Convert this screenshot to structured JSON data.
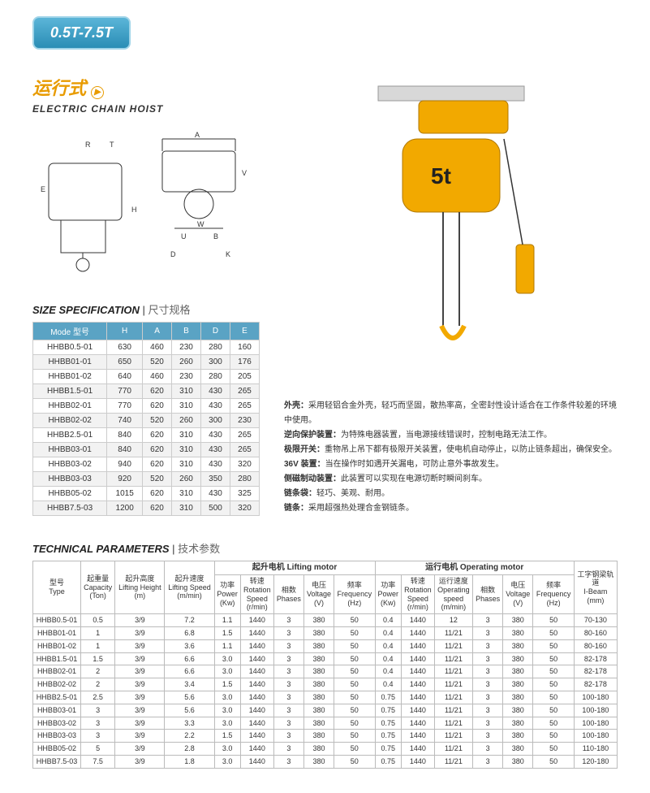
{
  "badge": "0.5T-7.5T",
  "title_cn": "运行式",
  "title_en": "ELECTRIC CHAIN HOIST",
  "size_head": {
    "en": "SIZE SPECIFICATION",
    "cn": "尺寸规格"
  },
  "size_cols": [
    "Mode 型号",
    "H",
    "A",
    "B",
    "D",
    "E"
  ],
  "size_rows": [
    [
      "HHBB0.5-01",
      "630",
      "460",
      "230",
      "280",
      "160"
    ],
    [
      "HHBB01-01",
      "650",
      "520",
      "260",
      "300",
      "176"
    ],
    [
      "HHBB01-02",
      "640",
      "460",
      "230",
      "280",
      "205"
    ],
    [
      "HHBB1.5-01",
      "770",
      "620",
      "310",
      "430",
      "265"
    ],
    [
      "HHBB02-01",
      "770",
      "620",
      "310",
      "430",
      "265"
    ],
    [
      "HHBB02-02",
      "740",
      "520",
      "260",
      "300",
      "230"
    ],
    [
      "HHBB2.5-01",
      "840",
      "620",
      "310",
      "430",
      "265"
    ],
    [
      "HHBB03-01",
      "840",
      "620",
      "310",
      "430",
      "265"
    ],
    [
      "HHBB03-02",
      "940",
      "620",
      "310",
      "430",
      "320"
    ],
    [
      "HHBB03-03",
      "920",
      "520",
      "260",
      "350",
      "280"
    ],
    [
      "HHBB05-02",
      "1015",
      "620",
      "310",
      "430",
      "325"
    ],
    [
      "HHBB7.5-03",
      "1200",
      "620",
      "310",
      "500",
      "320"
    ]
  ],
  "desc": [
    {
      "k": "外壳：",
      "v": "采用轻铝合金外壳，轻巧而坚固，散热率高，全密封性设计适合在工作条件较差的环境中使用。"
    },
    {
      "k": "逆向保护装置：",
      "v": "为特殊电器装置，当电源接线错误时，控制电路无法工作。"
    },
    {
      "k": "极限开关：",
      "v": "重物吊上吊下都有极限开关装置，使电机自动停止，以防止链条超出，确保安全。"
    },
    {
      "k": "36V 装置：",
      "v": "当在操作时如遇开关漏电，可防止意外事故发生。"
    },
    {
      "k": "侧磁制动装置：",
      "v": "此装置可以实现在电源切断时瞬间刹车。"
    },
    {
      "k": "链条袋：",
      "v": "轻巧、美观、耐用。"
    },
    {
      "k": "链条：",
      "v": "采用超强热处理合金钢链条。"
    }
  ],
  "tech_head": {
    "en": "TECHNICAL PARAMETERS",
    "cn": "技术参数"
  },
  "tech_group1": "起升电机 Lifting motor",
  "tech_group2": "运行电机 Operating motor",
  "tech_cols": [
    "型号\nType",
    "起重量\nCapacity\n(Ton)",
    "起升高度\nLifting Height\n(m)",
    "起升速度\nLifting Speed\n(m/min)",
    "功率\nPower\n(Kw)",
    "转速\nRotation\nSpeed\n(r/min)",
    "相数\nPhases",
    "电压\nVoltage\n(V)",
    "频率\nFrequency\n(Hz)",
    "功率\nPower\n(Kw)",
    "转速\nRotation\nSpeed\n(r/min)",
    "运行速度\nOperating\nspeed\n(m/min)",
    "相数\nPhases",
    "电压\nVoltage\n(V)",
    "频率\nFrequency\n(Hz)",
    "工字钢梁轨\n道\nI-Beam\n(mm)"
  ],
  "tech_rows": [
    [
      "HHBB0.5-01",
      "0.5",
      "3/9",
      "7.2",
      "1.1",
      "1440",
      "3",
      "380",
      "50",
      "0.4",
      "1440",
      "12",
      "3",
      "380",
      "50",
      "70-130"
    ],
    [
      "HHBB01-01",
      "1",
      "3/9",
      "6.8",
      "1.5",
      "1440",
      "3",
      "380",
      "50",
      "0.4",
      "1440",
      "11/21",
      "3",
      "380",
      "50",
      "80-160"
    ],
    [
      "HHBB01-02",
      "1",
      "3/9",
      "3.6",
      "1.1",
      "1440",
      "3",
      "380",
      "50",
      "0.4",
      "1440",
      "11/21",
      "3",
      "380",
      "50",
      "80-160"
    ],
    [
      "HHBB1.5-01",
      "1.5",
      "3/9",
      "6.6",
      "3.0",
      "1440",
      "3",
      "380",
      "50",
      "0.4",
      "1440",
      "11/21",
      "3",
      "380",
      "50",
      "82-178"
    ],
    [
      "HHBB02-01",
      "2",
      "3/9",
      "6.6",
      "3.0",
      "1440",
      "3",
      "380",
      "50",
      "0.4",
      "1440",
      "11/21",
      "3",
      "380",
      "50",
      "82-178"
    ],
    [
      "HHBB02-02",
      "2",
      "3/9",
      "3.4",
      "1.5",
      "1440",
      "3",
      "380",
      "50",
      "0.4",
      "1440",
      "11/21",
      "3",
      "380",
      "50",
      "82-178"
    ],
    [
      "HHBB2.5-01",
      "2.5",
      "3/9",
      "5.6",
      "3.0",
      "1440",
      "3",
      "380",
      "50",
      "0.75",
      "1440",
      "11/21",
      "3",
      "380",
      "50",
      "100-180"
    ],
    [
      "HHBB03-01",
      "3",
      "3/9",
      "5.6",
      "3.0",
      "1440",
      "3",
      "380",
      "50",
      "0.75",
      "1440",
      "11/21",
      "3",
      "380",
      "50",
      "100-180"
    ],
    [
      "HHBB03-02",
      "3",
      "3/9",
      "3.3",
      "3.0",
      "1440",
      "3",
      "380",
      "50",
      "0.75",
      "1440",
      "11/21",
      "3",
      "380",
      "50",
      "100-180"
    ],
    [
      "HHBB03-03",
      "3",
      "3/9",
      "2.2",
      "1.5",
      "1440",
      "3",
      "380",
      "50",
      "0.75",
      "1440",
      "11/21",
      "3",
      "380",
      "50",
      "100-180"
    ],
    [
      "HHBB05-02",
      "5",
      "3/9",
      "2.8",
      "3.0",
      "1440",
      "3",
      "380",
      "50",
      "0.75",
      "1440",
      "11/21",
      "3",
      "380",
      "50",
      "110-180"
    ],
    [
      "HHBB7.5-03",
      "7.5",
      "3/9",
      "1.8",
      "3.0",
      "1440",
      "3",
      "380",
      "50",
      "0.75",
      "1440",
      "11/21",
      "3",
      "380",
      "50",
      "120-180"
    ]
  ],
  "colors": {
    "brand": "#2a8db5",
    "accent": "#e89b00",
    "tblhead": "#5aa3c4"
  }
}
